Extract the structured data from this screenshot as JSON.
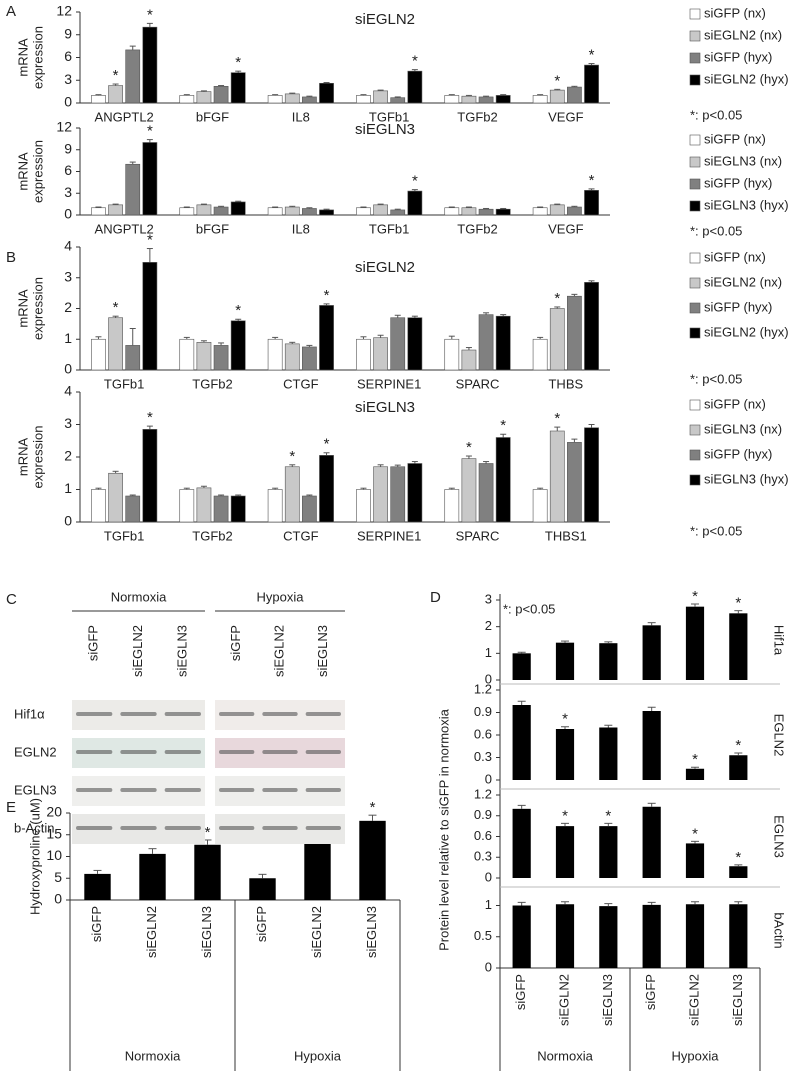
{
  "panel_labels": [
    "A",
    "B",
    "C",
    "D",
    "E"
  ],
  "western_blot": {
    "groups": [
      "Normoxia",
      "Hypoxia"
    ],
    "lanes": [
      "siGFP",
      "siEGLN2",
      "siEGLN3",
      "siGFP",
      "siEGLN2",
      "siEGLN3"
    ],
    "rows": [
      "Hif1α",
      "EGLN2",
      "EGLN3",
      "b-Actin"
    ]
  },
  "chart_data": [
    {
      "type": "grouped_bar",
      "title": "siEGLN2",
      "y_label": [
        "mRNA",
        "expression"
      ],
      "note": "*: p<0.05",
      "sig_label": "*",
      "categories": [
        "ANGPTL2",
        "bFGF",
        "IL8",
        "TGFb1",
        "TGFb2",
        "VEGF"
      ],
      "ylim": [
        0,
        12
      ],
      "yticks": [
        0,
        3,
        6,
        9,
        12
      ],
      "series": [
        {
          "name": "siGFP (nx)",
          "color": "#ffffff",
          "values": [
            1,
            1,
            1,
            1,
            1,
            1
          ],
          "errors": [
            0.1,
            0.1,
            0.1,
            0.1,
            0.1,
            0.1
          ],
          "sig": [
            false,
            false,
            false,
            false,
            false,
            false
          ]
        },
        {
          "name": "siEGLN2 (nx)",
          "color": "#c8c8c8",
          "values": [
            2.3,
            1.5,
            1.2,
            1.6,
            0.9,
            1.7
          ],
          "errors": [
            0.2,
            0.1,
            0.1,
            0.1,
            0.1,
            0.1
          ],
          "sig": [
            true,
            false,
            false,
            false,
            false,
            true
          ]
        },
        {
          "name": "siGFP (hyx)",
          "color": "#808080",
          "values": [
            7,
            2.2,
            0.8,
            0.7,
            0.8,
            2.1
          ],
          "errors": [
            0.5,
            0.1,
            0.1,
            0.1,
            0.1,
            0.1
          ],
          "sig": [
            false,
            false,
            false,
            false,
            false,
            false
          ]
        },
        {
          "name": "siEGLN2 (hyx)",
          "color": "#000000",
          "values": [
            10,
            4,
            2.6,
            4.2,
            1,
            5
          ],
          "errors": [
            0.5,
            0.2,
            0.1,
            0.2,
            0.1,
            0.2
          ],
          "sig": [
            true,
            true,
            false,
            true,
            false,
            true
          ]
        }
      ]
    },
    {
      "type": "grouped_bar",
      "title": "siEGLN3",
      "y_label": [
        "mRNA",
        "expression"
      ],
      "note": "*: p<0.05",
      "sig_label": "*",
      "categories": [
        "ANGPTL2",
        "bFGF",
        "IL8",
        "TGFb1",
        "TGFb2",
        "VEGF"
      ],
      "ylim": [
        0,
        12
      ],
      "yticks": [
        0,
        3,
        6,
        9,
        12
      ],
      "series": [
        {
          "name": "siGFP (nx)",
          "color": "#ffffff",
          "values": [
            1,
            1,
            1,
            1,
            1,
            1
          ],
          "errors": [
            0.1,
            0.1,
            0.1,
            0.1,
            0.1,
            0.1
          ],
          "sig": [
            false,
            false,
            false,
            false,
            false,
            false
          ]
        },
        {
          "name": "siEGLN3 (nx)",
          "color": "#c8c8c8",
          "values": [
            1.4,
            1.4,
            1.1,
            1.4,
            1,
            1.4
          ],
          "errors": [
            0.1,
            0.1,
            0.1,
            0.1,
            0.1,
            0.1
          ],
          "sig": [
            false,
            false,
            false,
            false,
            false,
            false
          ]
        },
        {
          "name": "siGFP (hyx)",
          "color": "#808080",
          "values": [
            7,
            1.1,
            0.9,
            0.7,
            0.8,
            1.1
          ],
          "errors": [
            0.3,
            0.1,
            0.1,
            0.1,
            0.1,
            0.1
          ],
          "sig": [
            false,
            false,
            false,
            false,
            false,
            false
          ]
        },
        {
          "name": "siEGLN3 (hyx)",
          "color": "#000000",
          "values": [
            10,
            1.8,
            0.7,
            3.3,
            0.8,
            3.4
          ],
          "errors": [
            0.4,
            0.1,
            0.1,
            0.2,
            0.1,
            0.2
          ],
          "sig": [
            true,
            false,
            false,
            true,
            false,
            true
          ]
        }
      ]
    },
    {
      "type": "grouped_bar",
      "title": "siEGLN2",
      "y_label": [
        "mRNA",
        "expression"
      ],
      "note": "*: p<0.05",
      "sig_label": "*",
      "categories": [
        "TGFb1",
        "TGFb2",
        "CTGF",
        "SERPINE1",
        "SPARC",
        "THBS"
      ],
      "ylim": [
        0,
        4
      ],
      "yticks": [
        0,
        1,
        2,
        3,
        4
      ],
      "series": [
        {
          "name": "siGFP (nx)",
          "color": "#ffffff",
          "values": [
            1,
            1,
            1,
            1,
            1,
            1
          ],
          "errors": [
            0.08,
            0.06,
            0.06,
            0.08,
            0.1,
            0.06
          ],
          "sig": [
            false,
            false,
            false,
            false,
            false,
            false
          ]
        },
        {
          "name": "siEGLN2 (nx)",
          "color": "#c8c8c8",
          "values": [
            1.7,
            0.9,
            0.85,
            1.05,
            0.65,
            2
          ],
          "errors": [
            0.05,
            0.05,
            0.05,
            0.08,
            0.08,
            0.05
          ],
          "sig": [
            true,
            false,
            false,
            false,
            false,
            true
          ]
        },
        {
          "name": "siGFP (hyx)",
          "color": "#808080",
          "values": [
            0.8,
            0.8,
            0.75,
            1.7,
            1.8,
            2.4
          ],
          "errors": [
            0.55,
            0.08,
            0.05,
            0.08,
            0.06,
            0.06
          ],
          "sig": [
            false,
            false,
            false,
            false,
            false,
            false
          ]
        },
        {
          "name": "siEGLN2 (hyx)",
          "color": "#000000",
          "values": [
            3.5,
            1.6,
            2.1,
            1.7,
            1.75,
            2.85
          ],
          "errors": [
            0.45,
            0.05,
            0.05,
            0.05,
            0.05,
            0.05
          ],
          "sig": [
            true,
            true,
            true,
            false,
            false,
            false
          ]
        }
      ]
    },
    {
      "type": "grouped_bar",
      "title": "siEGLN3",
      "y_label": [
        "mRNA",
        "expression"
      ],
      "note": "*: p<0.05",
      "sig_label": "*",
      "categories": [
        "TGFb1",
        "TGFb2",
        "CTGF",
        "SERPINE1",
        "SPARC",
        "THBS1"
      ],
      "ylim": [
        0,
        4
      ],
      "yticks": [
        0,
        1,
        2,
        3,
        4
      ],
      "series": [
        {
          "name": "siGFP (nx)",
          "color": "#ffffff",
          "values": [
            1,
            1,
            1,
            1,
            1,
            1
          ],
          "errors": [
            0.04,
            0.04,
            0.04,
            0.04,
            0.04,
            0.04
          ],
          "sig": [
            false,
            false,
            false,
            false,
            false,
            false
          ]
        },
        {
          "name": "siEGLN3 (nx)",
          "color": "#c8c8c8",
          "values": [
            1.5,
            1.05,
            1.7,
            1.7,
            1.95,
            2.8
          ],
          "errors": [
            0.06,
            0.05,
            0.06,
            0.06,
            0.08,
            0.12
          ],
          "sig": [
            false,
            false,
            true,
            false,
            true,
            true
          ]
        },
        {
          "name": "siGFP (hyx)",
          "color": "#808080",
          "values": [
            0.8,
            0.8,
            0.8,
            1.7,
            1.8,
            2.45
          ],
          "errors": [
            0.03,
            0.03,
            0.03,
            0.05,
            0.06,
            0.1
          ],
          "sig": [
            false,
            false,
            false,
            false,
            false,
            false
          ]
        },
        {
          "name": "siEGLN3 (hyx)",
          "color": "#000000",
          "values": [
            2.85,
            0.8,
            2.05,
            1.8,
            2.6,
            2.9
          ],
          "errors": [
            0.1,
            0.03,
            0.08,
            0.06,
            0.1,
            0.1
          ],
          "sig": [
            true,
            false,
            true,
            false,
            true,
            false
          ]
        }
      ]
    },
    {
      "type": "bar_facets",
      "y_label": "Protein level relative to siGFP in normoxia",
      "note": "*: p<0.05",
      "sig_label": "*",
      "color": "#000000",
      "categories": [
        "siGFP",
        "siEGLN2",
        "siEGLN3",
        "siGFP",
        "siEGLN2",
        "siEGLN3"
      ],
      "groups": [
        "Normoxia",
        "Hypoxia"
      ],
      "facets": [
        {
          "name": "Hif1a",
          "ylim": [
            0,
            3
          ],
          "yticks": [
            0,
            1,
            2,
            3
          ],
          "values": [
            1,
            1.4,
            1.38,
            2.05,
            2.75,
            2.5
          ],
          "errors": [
            0.04,
            0.06,
            0.05,
            0.1,
            0.1,
            0.1
          ],
          "sig": [
            false,
            false,
            false,
            false,
            true,
            true
          ]
        },
        {
          "name": "EGLN2",
          "ylim": [
            0,
            1.2
          ],
          "yticks": [
            0,
            0.3,
            0.6,
            0.9,
            1.2
          ],
          "values": [
            1,
            0.68,
            0.7,
            0.92,
            0.15,
            0.33
          ],
          "errors": [
            0.05,
            0.03,
            0.03,
            0.05,
            0.02,
            0.03
          ],
          "sig": [
            false,
            true,
            false,
            false,
            true,
            true
          ]
        },
        {
          "name": "EGLN3",
          "ylim": [
            0,
            1.2
          ],
          "yticks": [
            0,
            0.3,
            0.6,
            0.9,
            1.2
          ],
          "values": [
            1,
            0.75,
            0.75,
            1.03,
            0.5,
            0.17
          ],
          "errors": [
            0.05,
            0.04,
            0.04,
            0.05,
            0.03,
            0.02
          ],
          "sig": [
            false,
            true,
            true,
            false,
            true,
            true
          ]
        },
        {
          "name": "bActin",
          "ylim": [
            0,
            1.2
          ],
          "yticks": [
            0,
            0.5,
            1
          ],
          "values": [
            1,
            1.02,
            0.99,
            1.01,
            1.02,
            1.02
          ],
          "errors": [
            0.05,
            0.04,
            0.04,
            0.04,
            0.04,
            0.04
          ],
          "sig": [
            false,
            false,
            false,
            false,
            false,
            false
          ]
        }
      ]
    },
    {
      "type": "bar",
      "y_label": "Hydroxyproline (uM)",
      "note": "*: p<0.05",
      "sig_label": "*",
      "color": "#000000",
      "categories": [
        "siGFP",
        "siEGLN2",
        "siEGLN3",
        "siGFP",
        "siEGLN2",
        "siEGLN3"
      ],
      "groups": [
        "Normoxia",
        "Hypoxia"
      ],
      "ylim": [
        0,
        20
      ],
      "yticks": [
        0,
        5,
        10,
        15,
        20
      ],
      "values": [
        6,
        10.6,
        12.7,
        5,
        13.2,
        18.2
      ],
      "errors": [
        0.8,
        1.2,
        1.1,
        0.9,
        1.2,
        1.3
      ],
      "sig": [
        false,
        false,
        true,
        false,
        true,
        true
      ]
    }
  ]
}
